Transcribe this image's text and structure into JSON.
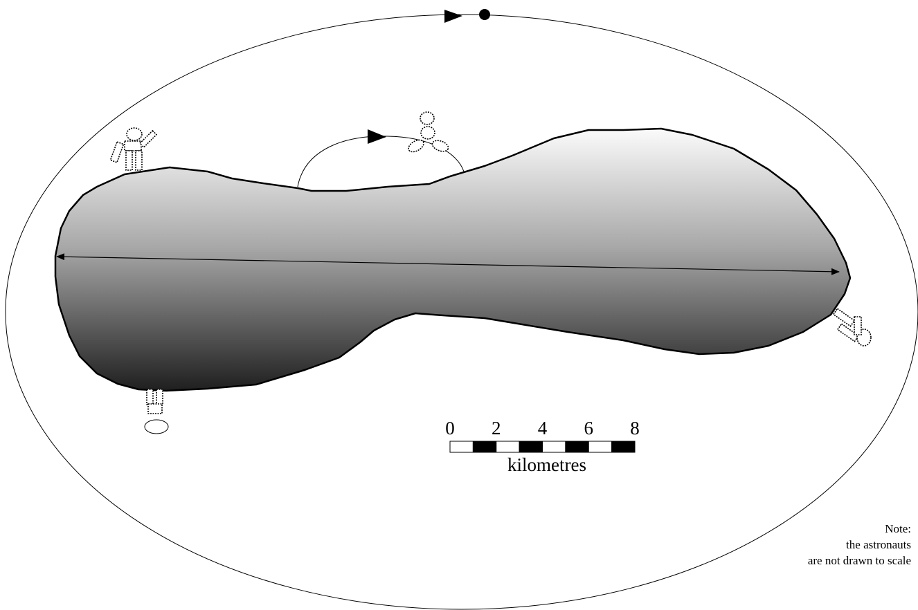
{
  "scale": {
    "ticks": [
      0,
      2,
      4,
      6,
      8
    ],
    "label": "kilometres"
  },
  "note": {
    "lines": [
      "Note:",
      "the astronauts",
      "are not drawn to scale"
    ]
  }
}
